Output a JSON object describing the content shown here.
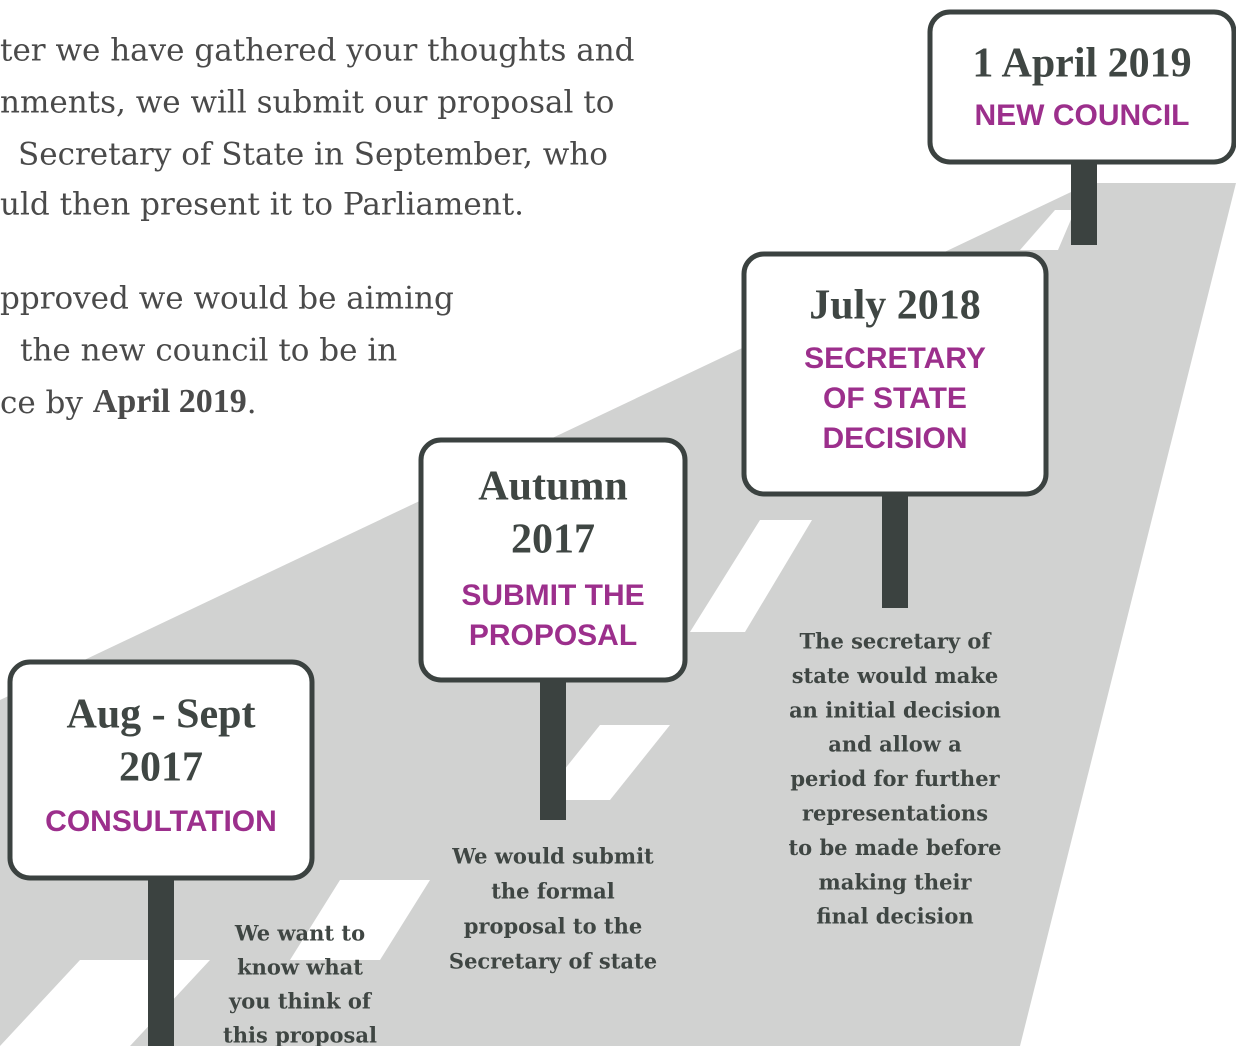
{
  "intro": {
    "paragraph_1": [
      "ter we have gathered your thoughts and",
      "nments, we will submit our proposal to",
      "Secretary of State in September, who",
      "uld then present it to Parliament."
    ],
    "paragraph_2": [
      "pproved we would be aiming",
      "the new council to be in"
    ],
    "paragraph_2_last": {
      "start": "ce by ",
      "bold": "April 2019",
      "end": "."
    }
  },
  "milestones": [
    {
      "date_lines": [
        "Aug - Sept",
        "2017"
      ],
      "label_lines": [
        "CONSULTATION"
      ],
      "description_lines": [
        "We want to",
        "know what",
        "you think of",
        "this proposal"
      ]
    },
    {
      "date_lines": [
        "Autumn",
        "2017"
      ],
      "label_lines": [
        "SUBMIT THE",
        "PROPOSAL"
      ],
      "description_lines": [
        "We would submit",
        "the formal",
        "proposal to the",
        "Secretary of state"
      ]
    },
    {
      "date_lines": [
        "July 2018"
      ],
      "label_lines": [
        "SECRETARY",
        "OF STATE",
        "DECISION"
      ],
      "description_lines": [
        "The secretary of",
        "state would make",
        "an initial decision",
        "and allow a",
        "period for further",
        "representations",
        "to be made before",
        "making their",
        "final decision"
      ]
    },
    {
      "date_lines": [
        "1 April 2019"
      ],
      "label_lines": [
        "NEW COUNCIL"
      ],
      "description_lines": []
    }
  ]
}
